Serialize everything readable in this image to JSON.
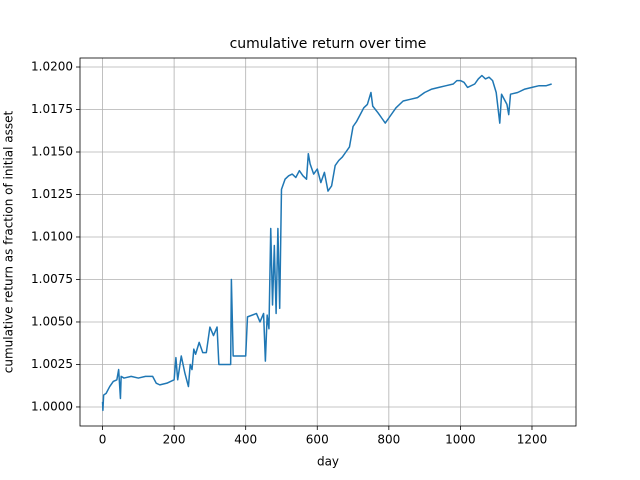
{
  "chart_data": {
    "type": "line",
    "title": "cumulative return over time",
    "x_label": "day",
    "y_label": "cumulative return as fraction of initial asset",
    "x": [
      0,
      1,
      3,
      10,
      20,
      30,
      40,
      45,
      50,
      52,
      60,
      80,
      100,
      120,
      140,
      150,
      160,
      180,
      200,
      205,
      210,
      220,
      230,
      240,
      245,
      250,
      255,
      260,
      270,
      280,
      290,
      300,
      310,
      320,
      325,
      350,
      358,
      360,
      365,
      400,
      405,
      430,
      440,
      450,
      455,
      460,
      465,
      470,
      475,
      480,
      485,
      490,
      495,
      500,
      510,
      520,
      530,
      540,
      550,
      560,
      570,
      575,
      580,
      590,
      600,
      610,
      620,
      630,
      640,
      650,
      660,
      670,
      680,
      690,
      700,
      710,
      720,
      730,
      740,
      750,
      755,
      770,
      780,
      790,
      800,
      820,
      840,
      860,
      880,
      900,
      920,
      940,
      960,
      980,
      990,
      1000,
      1010,
      1020,
      1040,
      1050,
      1060,
      1070,
      1080,
      1090,
      1100,
      1110,
      1115,
      1120,
      1130,
      1135,
      1140,
      1160,
      1180,
      1200,
      1220,
      1240,
      1255
    ],
    "series": [
      {
        "name": "cumulative return",
        "color": "#1f77b4",
        "values": [
          1.0003,
          0.9998,
          1.0007,
          1.0008,
          1.0012,
          1.0015,
          1.0016,
          1.0022,
          1.0005,
          1.0018,
          1.0017,
          1.0018,
          1.0017,
          1.0018,
          1.0018,
          1.0014,
          1.0013,
          1.0014,
          1.0016,
          1.0029,
          1.0016,
          1.003,
          1.002,
          1.0012,
          1.0025,
          1.0022,
          1.0034,
          1.0031,
          1.0038,
          1.0032,
          1.0032,
          1.0047,
          1.0042,
          1.0047,
          1.0025,
          1.0025,
          1.0025,
          1.0075,
          1.003,
          1.003,
          1.0053,
          1.0055,
          1.005,
          1.0055,
          1.0027,
          1.0054,
          1.0046,
          1.0105,
          1.006,
          1.0095,
          1.0055,
          1.0105,
          1.0058,
          1.0128,
          1.0134,
          1.0136,
          1.0137,
          1.0135,
          1.0139,
          1.0136,
          1.0134,
          1.0149,
          1.0143,
          1.0137,
          1.014,
          1.0132,
          1.0138,
          1.0127,
          1.013,
          1.0142,
          1.0145,
          1.0147,
          1.015,
          1.0153,
          1.0165,
          1.0168,
          1.0172,
          1.0176,
          1.0178,
          1.0185,
          1.0177,
          1.0173,
          1.017,
          1.0167,
          1.017,
          1.0176,
          1.018,
          1.0181,
          1.0182,
          1.0185,
          1.0187,
          1.0188,
          1.0189,
          1.019,
          1.0192,
          1.0192,
          1.0191,
          1.0188,
          1.019,
          1.0193,
          1.0195,
          1.0193,
          1.0194,
          1.0192,
          1.0185,
          1.0167,
          1.0184,
          1.0182,
          1.0178,
          1.0172,
          1.0184,
          1.0185,
          1.0187,
          1.0188,
          1.0189,
          1.0189,
          1.019
        ]
      }
    ],
    "xlim": [
      -63,
      1323
    ],
    "xticks": [
      0,
      200,
      400,
      600,
      800,
      1000,
      1200
    ],
    "ylim": [
      0.99888,
      1.02053
    ],
    "yticks": [
      {
        "value": 1.0,
        "label": "1.0000"
      },
      {
        "value": 1.0025,
        "label": "1.0025"
      },
      {
        "value": 1.005,
        "label": "1.0050"
      },
      {
        "value": 1.0075,
        "label": "1.0075"
      },
      {
        "value": 1.01,
        "label": "1.0100"
      },
      {
        "value": 1.0125,
        "label": "1.0125"
      },
      {
        "value": 1.015,
        "label": "1.0150"
      },
      {
        "value": 1.0175,
        "label": "1.0175"
      },
      {
        "value": 1.02,
        "label": "1.0200"
      }
    ],
    "grid": true
  }
}
